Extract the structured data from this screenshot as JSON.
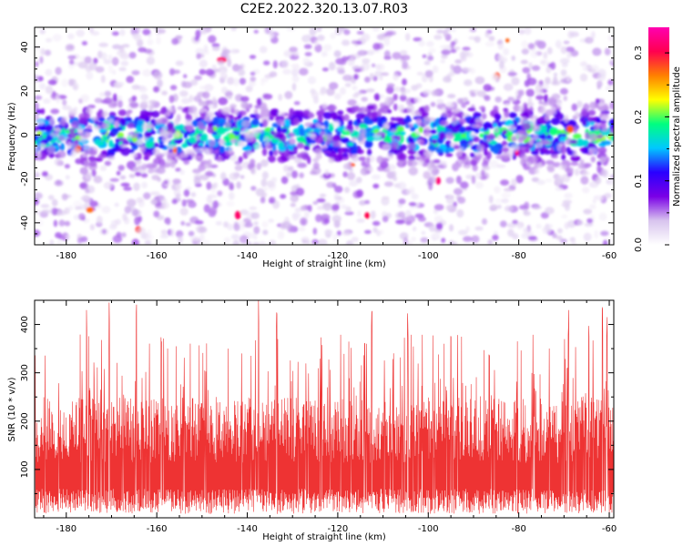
{
  "title": "C2E2.2022.320.13.07.R03",
  "chart_data": [
    {
      "type": "heatmap",
      "xlabel": "Height of straight line (km)",
      "ylabel": "Frequency (Hz)",
      "xlim": [
        -187,
        -59
      ],
      "ylim": [
        -50,
        49
      ],
      "xticks": [
        -180,
        -160,
        -140,
        -120,
        -100,
        -80,
        -60
      ],
      "yticks": [
        -40,
        -20,
        0,
        20,
        40
      ],
      "xtick_labels": [
        "-180",
        "-160",
        "-140",
        "-120",
        "-100",
        "-80",
        "-60"
      ],
      "ytick_labels": [
        "-40",
        "-20",
        "0",
        "20",
        "40"
      ],
      "colorbar": {
        "label": "Normalized spectral amplitude",
        "range": [
          0,
          0.34
        ],
        "ticks": [
          0,
          0.1,
          0.2,
          0.3
        ],
        "tick_labels": [
          "0.0",
          "0.1",
          "0.2",
          "0.3"
        ],
        "colormap": [
          "#ffffff",
          "#d8c4ee",
          "#7a00e6",
          "#2a00ff",
          "#00c8ff",
          "#00ff80",
          "#ffff00",
          "#ff8000",
          "#ff0050",
          "#ff00b0"
        ]
      },
      "description_values": {
        "band_center_hz": 0,
        "band_halfwidth_hz": 8,
        "band_amplitude": 0.12,
        "background_amplitude": 0.04,
        "peak_amplitude": 0.3
      }
    },
    {
      "type": "line",
      "xlabel": "Height of straight line (km)",
      "ylabel": "SNR (10 * v/v)",
      "xlim": [
        -187,
        -59
      ],
      "ylim": [
        0,
        450
      ],
      "xticks": [
        -180,
        -160,
        -140,
        -120,
        -100,
        -80,
        -60
      ],
      "yticks": [
        100,
        200,
        300,
        400
      ],
      "xtick_labels": [
        "-180",
        "-160",
        "-140",
        "-120",
        "-100",
        "-80",
        "-60"
      ],
      "ytick_labels": [
        "100",
        "200",
        "300",
        "400"
      ],
      "color": "#ee3333",
      "description_values": {
        "typical_low": 40,
        "typical_high": 250,
        "max_peak": 450,
        "peak_positions_km": [
          -164.5,
          -170.5,
          -175.5,
          -137.5,
          -133.5,
          -112.5,
          -104.5,
          -95,
          -69,
          -64.5,
          -60.5,
          -61.5
        ]
      }
    }
  ]
}
